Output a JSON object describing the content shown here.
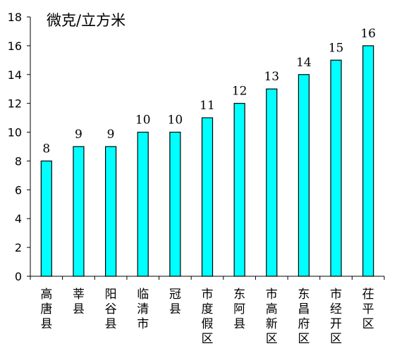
{
  "chart_data": {
    "type": "bar",
    "title": "",
    "ylabel": "微克/立方米",
    "xlabel": "",
    "categories": [
      "高唐县",
      "莘县",
      "阳谷县",
      "临清市",
      "冠县",
      "市度假区",
      "东阿县",
      "市高新区",
      "东昌府区",
      "市经开区",
      "茌平区"
    ],
    "values": [
      8,
      9,
      9,
      10,
      10,
      11,
      12,
      13,
      14,
      15,
      16
    ],
    "data_labels": [
      "8",
      "9",
      "9",
      "10",
      "10",
      "11",
      "12",
      "13",
      "14",
      "15",
      "16"
    ],
    "ylim": [
      0,
      18
    ],
    "yticks": [
      "0",
      "2",
      "4",
      "6",
      "8",
      "10",
      "12",
      "14",
      "16",
      "18"
    ],
    "grid": false,
    "bar_color": "#00ffff",
    "bar_edge_color": "#000000"
  }
}
